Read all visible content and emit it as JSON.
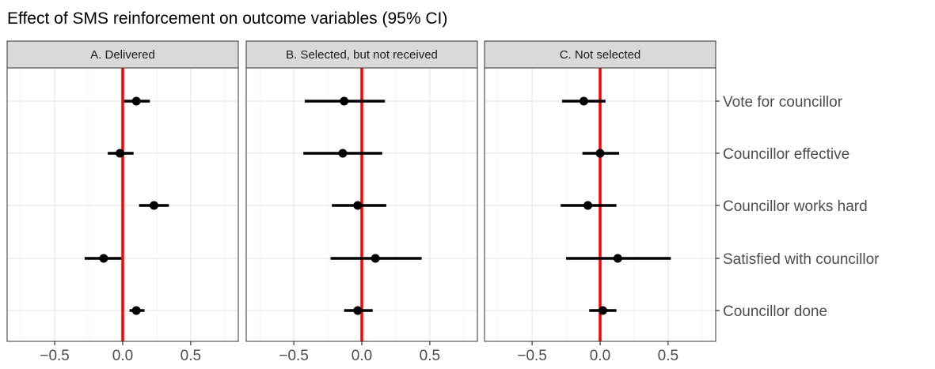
{
  "chart_data": {
    "type": "point-range",
    "title": "Effect of SMS reinforcement on outcome variables (95% CI)",
    "xlabel": "",
    "ylabel": "",
    "xlim": [
      -0.85,
      0.85
    ],
    "x_ticks": [
      -0.5,
      0.0,
      0.5
    ],
    "x_tick_labels": [
      "−0.5",
      "0.0",
      "0.5"
    ],
    "reference_line": {
      "x": 0,
      "color": "#ff0000"
    },
    "categories": [
      "Vote for councillor",
      "Councillor effective",
      "Councillor works hard",
      "Satisfied with councillor",
      "Councillor done"
    ],
    "panels": [
      {
        "name": "A. Delivered",
        "estimates": [
          0.1,
          -0.02,
          0.23,
          -0.14,
          0.1
        ],
        "ci_low": [
          0.01,
          -0.11,
          0.12,
          -0.28,
          0.05
        ],
        "ci_high": [
          0.2,
          0.08,
          0.34,
          -0.01,
          0.16
        ]
      },
      {
        "name": "B. Selected, but not received",
        "estimates": [
          -0.13,
          -0.14,
          -0.03,
          0.1,
          -0.03
        ],
        "ci_low": [
          -0.42,
          -0.43,
          -0.22,
          -0.23,
          -0.13
        ],
        "ci_high": [
          0.17,
          0.15,
          0.18,
          0.44,
          0.08
        ]
      },
      {
        "name": "C. Not selected",
        "estimates": [
          -0.12,
          0.0,
          -0.09,
          0.13,
          0.02
        ],
        "ci_low": [
          -0.28,
          -0.13,
          -0.29,
          -0.25,
          -0.08
        ],
        "ci_high": [
          0.04,
          0.14,
          0.12,
          0.52,
          0.12
        ]
      }
    ],
    "grid": true,
    "colors": {
      "point": "#000000",
      "errorbar": "#000000",
      "zero_line": "#ff0000",
      "strip_fill": "#d9d9d9",
      "grid": "#ebebeb"
    }
  }
}
